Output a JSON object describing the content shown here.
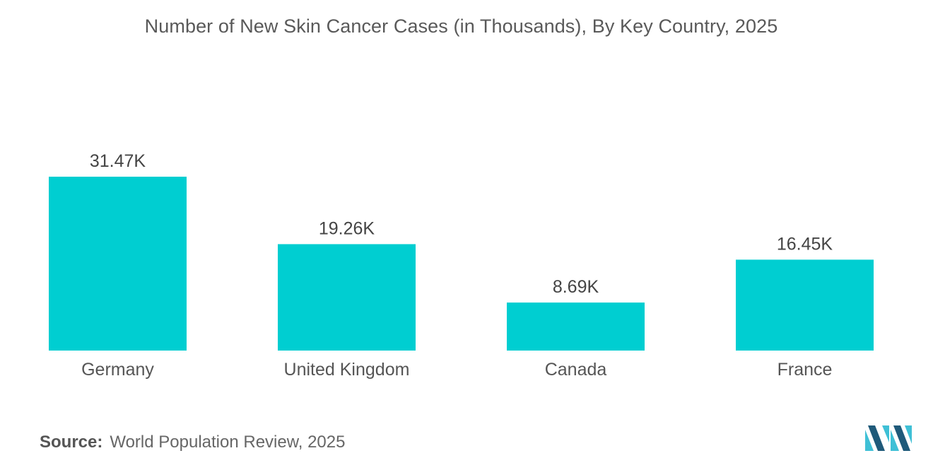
{
  "chart_data": {
    "type": "bar",
    "title": "Number of New Skin Cancer Cases (in Thousands), By Key Country, 2025",
    "xlabel": "",
    "ylabel": "",
    "categories": [
      "Germany",
      "United Kingdom",
      "Canada",
      "France"
    ],
    "values": [
      31.47,
      19.26,
      8.69,
      16.45
    ],
    "data_labels": [
      "31.47K",
      "19.26K",
      "8.69K",
      "16.45K"
    ],
    "ylim": [
      0,
      31.47
    ],
    "grid": false,
    "legend": "none",
    "bar_color": "#00CED1"
  },
  "source": {
    "label": "Source:",
    "text": "World Population Review, 2025"
  },
  "colors": {
    "bar": "#00CED1",
    "logo_dark": "#1F5A7A",
    "logo_light": "#3FC0D6"
  }
}
